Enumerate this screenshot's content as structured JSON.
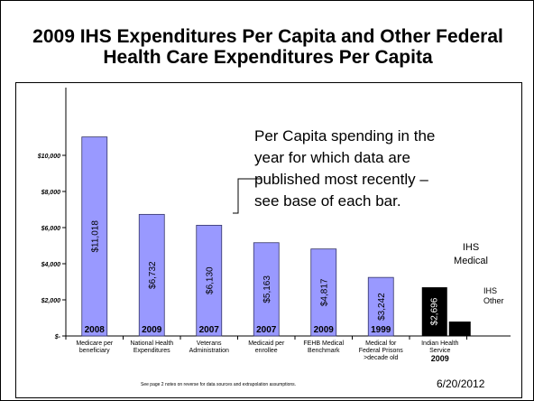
{
  "title_line1": "2009 IHS Expenditures Per Capita and Other Federal",
  "title_line2": "Health Care Expenditures Per Capita",
  "callout": [
    "Per Capita spending in the",
    "year for which data are",
    "published most recently –",
    "see base of each bar."
  ],
  "ihs_medical_label": [
    "IHS",
    "Medical"
  ],
  "ihs_other_label": [
    "IHS",
    "Other"
  ],
  "footnote": "See page 2 notes on reverse for data sources and extrapolation assumptions.",
  "date": "6/20/2012",
  "colors": {
    "bar": "#9999ff",
    "ihs_bar": "#000000",
    "axis": "#000000"
  },
  "chart_data": {
    "type": "bar",
    "ylim": [
      0,
      11000
    ],
    "y_ticks": [
      0,
      2000,
      4000,
      6000,
      8000,
      10000
    ],
    "y_tick_labels": [
      "$-",
      "$2,000",
      "$4,000",
      "$6,000",
      "$8,000",
      "$10,000"
    ],
    "grid": false,
    "bars": [
      {
        "category": [
          "Medicare per",
          "beneficiary"
        ],
        "value": 11018,
        "value_label": "$11,018",
        "year": "2008"
      },
      {
        "category": [
          "National Health",
          "Expenditures"
        ],
        "value": 6732,
        "value_label": "$6,732",
        "year": "2009"
      },
      {
        "category": [
          "Veterans",
          "Administration"
        ],
        "value": 6130,
        "value_label": "$6,130",
        "year": "2007"
      },
      {
        "category": [
          "Medicaid per",
          "enrollee"
        ],
        "value": 5163,
        "value_label": "$5,163",
        "year": "2007"
      },
      {
        "category": [
          "FEHB Medical",
          "Benchmark"
        ],
        "value": 4817,
        "value_label": "$4,817",
        "year": "2009"
      },
      {
        "category": [
          "Medical for",
          "Federal Prisons",
          ">decade old"
        ],
        "value": 3242,
        "value_label": "$3,242",
        "year": "1999"
      }
    ],
    "ihs": {
      "category": [
        "Indian Health",
        "Service"
      ],
      "year": "2009",
      "stack": [
        {
          "name": "IHS Medical",
          "value": 2696,
          "value_label": "$2,696"
        },
        {
          "name": "IHS Other",
          "value": 798
        }
      ]
    }
  }
}
